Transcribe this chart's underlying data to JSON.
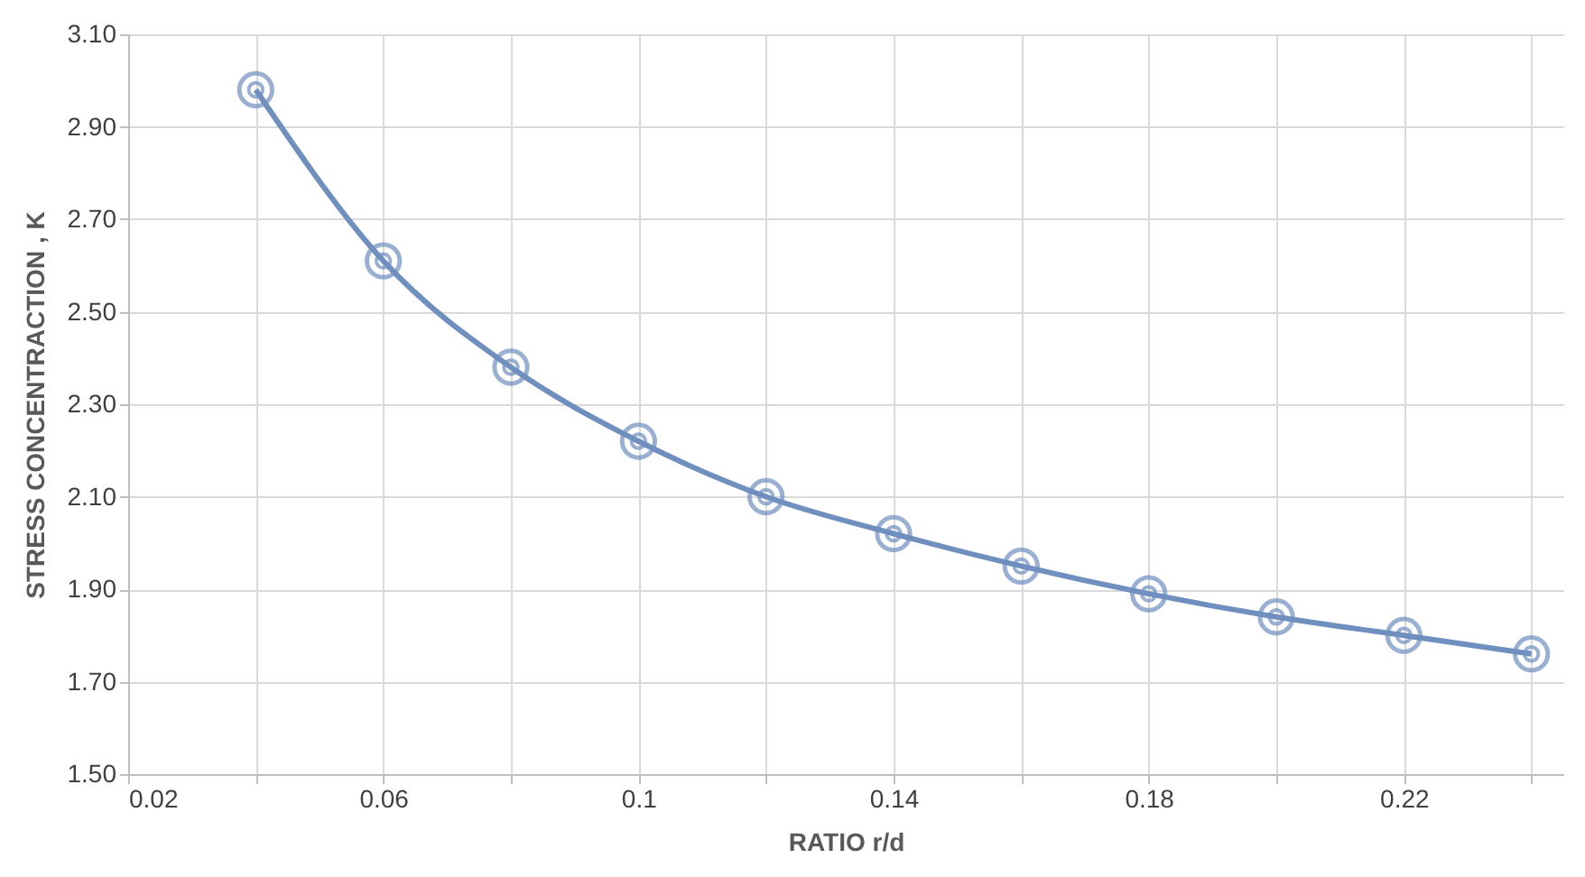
{
  "chart_data": {
    "type": "line",
    "xlabel": "RATIO r/d",
    "ylabel": "STRESS CONCENTRACTION , K",
    "x": [
      0.04,
      0.06,
      0.08,
      0.1,
      0.12,
      0.14,
      0.16,
      0.18,
      0.2,
      0.22,
      0.24
    ],
    "series": [
      {
        "color": "#6f8fbf",
        "values": [
          2.98,
          2.61,
          2.38,
          2.22,
          2.1,
          2.02,
          1.95,
          1.89,
          1.84,
          1.8,
          1.76
        ]
      }
    ],
    "xlim": [
      0.02,
      0.245
    ],
    "xticks": [
      0.02,
      {
        "value": 0.04,
        "label": null
      },
      0.06,
      {
        "value": 0.08,
        "label": null
      },
      0.1,
      {
        "value": 0.12,
        "label": null
      },
      0.14,
      {
        "value": 0.16,
        "label": null
      },
      0.18,
      {
        "value": 0.2,
        "label": null
      },
      0.22,
      {
        "value": 0.24,
        "label": null
      }
    ],
    "ylim": [
      1.5,
      3.1
    ],
    "yticks": [
      {
        "value": 1.5,
        "label": "1.50"
      },
      {
        "value": 1.7,
        "label": "1.70"
      },
      {
        "value": 1.9,
        "label": "1.90"
      },
      {
        "value": 2.1,
        "label": "2.10"
      },
      {
        "value": 2.3,
        "label": "2.30"
      },
      {
        "value": 2.5,
        "label": "2.50"
      },
      {
        "value": 2.7,
        "label": "2.70"
      },
      {
        "value": 2.9,
        "label": "2.90"
      },
      {
        "value": 3.1,
        "label": "3.10"
      }
    ],
    "grid": true,
    "marker": "circle",
    "line_style": "solid"
  }
}
